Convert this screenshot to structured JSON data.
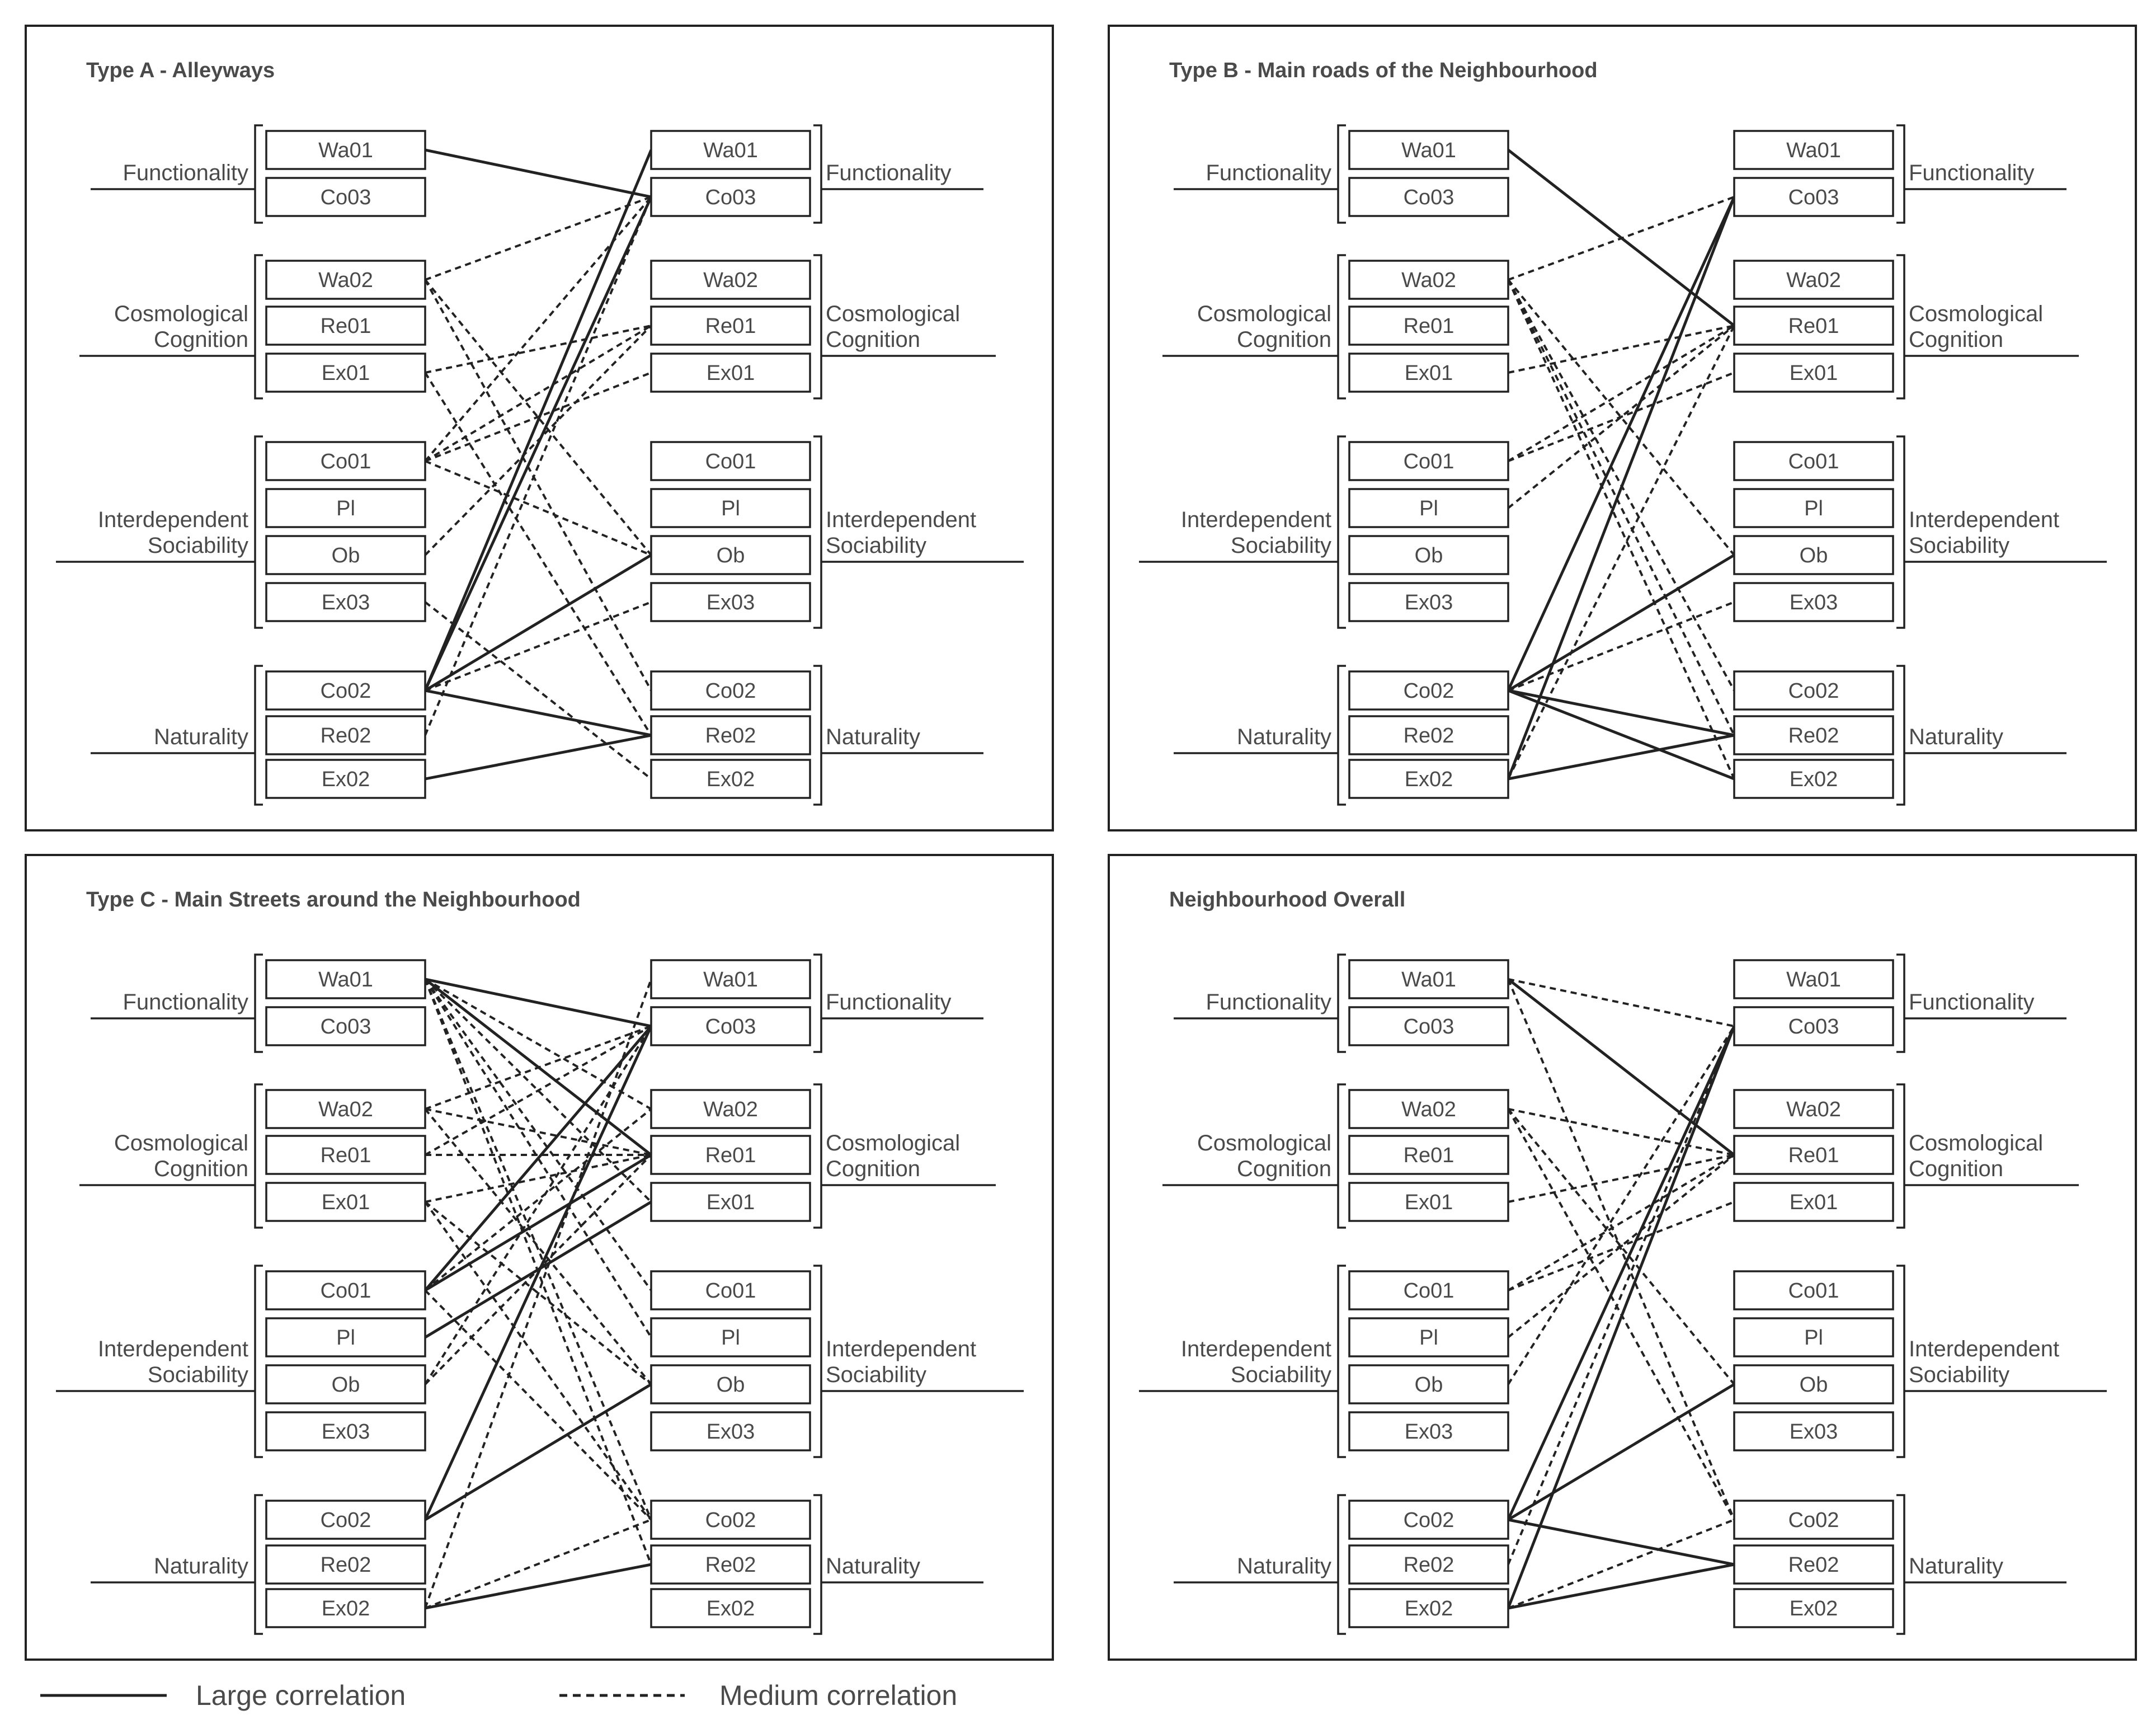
{
  "groups": [
    {
      "key": "func",
      "label_lines": [
        "Functionality"
      ],
      "nodes": [
        "Wa01",
        "Co03"
      ]
    },
    {
      "key": "cosmo",
      "label_lines": [
        "Cosmological",
        "Cognition"
      ],
      "nodes": [
        "Wa02",
        "Re01",
        "Ex01"
      ]
    },
    {
      "key": "inter",
      "label_lines": [
        "Interdependent",
        "Sociability"
      ],
      "nodes": [
        "Co01",
        "Pl",
        "Ob",
        "Ex03"
      ]
    },
    {
      "key": "nat",
      "label_lines": [
        "Naturality"
      ],
      "nodes": [
        "Co02",
        "Re02",
        "Ex02"
      ]
    }
  ],
  "panels": [
    {
      "id": "type-a",
      "title": "Type A - Alleyways",
      "edges": [
        [
          "Wa01",
          "Co03",
          "large"
        ],
        [
          "Co02",
          "Co03",
          "large"
        ],
        [
          "Co02",
          "Wa01",
          "large"
        ],
        [
          "Co02",
          "Ob",
          "large"
        ],
        [
          "Co02",
          "Re02",
          "large"
        ],
        [
          "Ex02",
          "Re02",
          "large"
        ],
        [
          "Wa02",
          "Co03",
          "medium"
        ],
        [
          "Wa02",
          "Ob",
          "medium"
        ],
        [
          "Wa02",
          "Co02",
          "medium"
        ],
        [
          "Ex01",
          "Re01",
          "medium"
        ],
        [
          "Ex01",
          "Re02",
          "medium"
        ],
        [
          "Co01",
          "Co03",
          "medium"
        ],
        [
          "Co01",
          "Re01",
          "medium"
        ],
        [
          "Co01",
          "Ex01",
          "medium"
        ],
        [
          "Co01",
          "Ob",
          "medium"
        ],
        [
          "Ob",
          "Re01",
          "medium"
        ],
        [
          "Ex03",
          "Ex02",
          "medium"
        ],
        [
          "Co02",
          "Ex03",
          "medium"
        ],
        [
          "Re02",
          "Co03",
          "medium"
        ]
      ]
    },
    {
      "id": "type-b",
      "title": "Type B - Main roads of the Neighbourhood",
      "edges": [
        [
          "Wa01",
          "Re01",
          "large"
        ],
        [
          "Co02",
          "Co03",
          "large"
        ],
        [
          "Ex02",
          "Co03",
          "large"
        ],
        [
          "Co02",
          "Ob",
          "large"
        ],
        [
          "Co02",
          "Re02",
          "large"
        ],
        [
          "Co02",
          "Ex02",
          "large"
        ],
        [
          "Ex02",
          "Re02",
          "large"
        ],
        [
          "Wa02",
          "Co03",
          "medium"
        ],
        [
          "Wa02",
          "Ob",
          "medium"
        ],
        [
          "Wa02",
          "Co02",
          "medium"
        ],
        [
          "Wa02",
          "Re02",
          "medium"
        ],
        [
          "Wa02",
          "Ex02",
          "medium"
        ],
        [
          "Ex01",
          "Re01",
          "medium"
        ],
        [
          "Co01",
          "Re01",
          "medium"
        ],
        [
          "Co01",
          "Ex01",
          "medium"
        ],
        [
          "Pl",
          "Re01",
          "medium"
        ],
        [
          "Co02",
          "Ex03",
          "medium"
        ],
        [
          "Ex02",
          "Re01",
          "medium"
        ]
      ]
    },
    {
      "id": "type-c",
      "title": "Type C - Main Streets around the Neighbourhood",
      "edges": [
        [
          "Wa01",
          "Co03",
          "large"
        ],
        [
          "Wa01",
          "Re01",
          "large"
        ],
        [
          "Co01",
          "Co03",
          "large"
        ],
        [
          "Co01",
          "Re01",
          "large"
        ],
        [
          "Pl",
          "Ex01",
          "large"
        ],
        [
          "Co02",
          "Co03",
          "large"
        ],
        [
          "Co02",
          "Ob",
          "large"
        ],
        [
          "Ex02",
          "Re02",
          "large"
        ],
        [
          "Wa01",
          "Wa02",
          "medium"
        ],
        [
          "Wa01",
          "Ex01",
          "medium"
        ],
        [
          "Wa01",
          "Co01",
          "medium"
        ],
        [
          "Wa01",
          "Pl",
          "medium"
        ],
        [
          "Wa01",
          "Co02",
          "medium"
        ],
        [
          "Wa01",
          "Re02",
          "medium"
        ],
        [
          "Wa02",
          "Co03",
          "medium"
        ],
        [
          "Wa02",
          "Re01",
          "medium"
        ],
        [
          "Wa02",
          "Ob",
          "medium"
        ],
        [
          "Re01",
          "Co03",
          "medium"
        ],
        [
          "Re01",
          "Re01",
          "medium"
        ],
        [
          "Ex01",
          "Re01",
          "medium"
        ],
        [
          "Ex01",
          "Ob",
          "medium"
        ],
        [
          "Ex01",
          "Co02",
          "medium"
        ],
        [
          "Co01",
          "Wa02",
          "medium"
        ],
        [
          "Co01",
          "Co02",
          "medium"
        ],
        [
          "Ob",
          "Co03",
          "medium"
        ],
        [
          "Ob",
          "Re01",
          "medium"
        ],
        [
          "Ex02",
          "Co02",
          "medium"
        ],
        [
          "Ex02",
          "Wa01",
          "medium"
        ]
      ]
    },
    {
      "id": "overall",
      "title": "Neighbourhood Overall",
      "edges": [
        [
          "Wa01",
          "Re01",
          "large"
        ],
        [
          "Co02",
          "Co03",
          "large"
        ],
        [
          "Ex02",
          "Co03",
          "large"
        ],
        [
          "Co02",
          "Ob",
          "large"
        ],
        [
          "Co02",
          "Re02",
          "large"
        ],
        [
          "Ex02",
          "Re02",
          "large"
        ],
        [
          "Wa01",
          "Co03",
          "medium"
        ],
        [
          "Wa01",
          "Co02",
          "medium"
        ],
        [
          "Wa02",
          "Re01",
          "medium"
        ],
        [
          "Wa02",
          "Ob",
          "medium"
        ],
        [
          "Wa02",
          "Co02",
          "medium"
        ],
        [
          "Ex01",
          "Re01",
          "medium"
        ],
        [
          "Co01",
          "Re01",
          "medium"
        ],
        [
          "Co01",
          "Ex01",
          "medium"
        ],
        [
          "Pl",
          "Re01",
          "medium"
        ],
        [
          "Ob",
          "Co03",
          "medium"
        ],
        [
          "Re02",
          "Co03",
          "medium"
        ],
        [
          "Ex02",
          "Co02",
          "medium"
        ]
      ]
    }
  ],
  "legend": {
    "large_label": "Large correlation",
    "medium_label": "Medium correlation"
  }
}
